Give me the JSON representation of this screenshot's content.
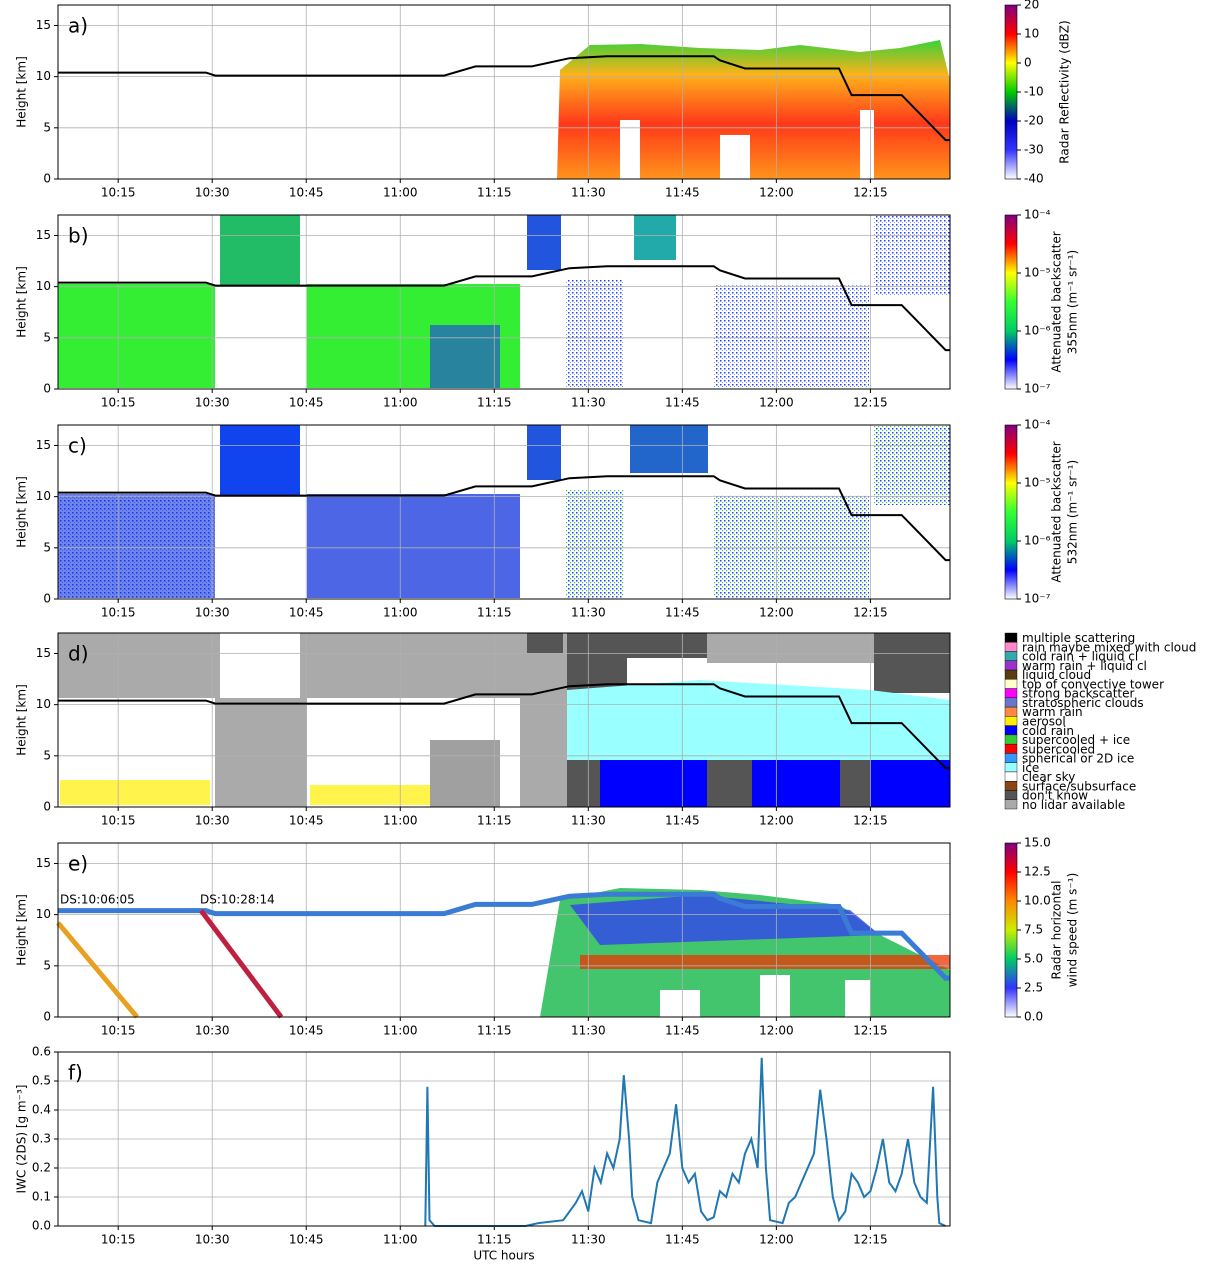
{
  "chart_data": [
    {
      "type": "line",
      "label": "a)",
      "ylabel": "Height [km]",
      "xlim": [
        "10:05:24",
        "12:27:42"
      ],
      "xticks": [
        "10:15",
        "10:30",
        "10:45",
        "11:00",
        "11:15",
        "11:30",
        "11:45",
        "12:00",
        "12:15"
      ],
      "ylim": [
        0,
        17
      ],
      "yticks": [
        0,
        5,
        10,
        15
      ],
      "grid": true,
      "series": [
        {
          "color": "#000000",
          "x": [
            "10:05:24",
            "10:29:00",
            "10:30:30",
            "11:07:00",
            "11:12:00",
            "11:21:00",
            "11:27:00",
            "11:33:00",
            "11:50:00",
            "11:51:00",
            "11:55:00",
            "12:10:00",
            "12:12:00",
            "12:20:00",
            "12:27:00",
            "12:27:42"
          ],
          "values": [
            10.4,
            10.4,
            10.1,
            10.1,
            11.0,
            11.0,
            11.8,
            12.0,
            12.0,
            11.6,
            10.8,
            10.8,
            8.2,
            8.2,
            3.8,
            3.8
          ]
        }
      ],
      "colorbar": {
        "label": [
          "Radar Reflectivity (dBZ)"
        ],
        "lim": [
          -40,
          20
        ],
        "ticks": [
          20,
          10,
          0,
          -10,
          -20,
          -30,
          -40
        ],
        "log": false,
        "colors": [
          "#ffffff",
          "#3333ff",
          "#0000c0",
          "#00cc00",
          "#ffff00",
          "#ff0000",
          "#800080"
        ]
      }
    },
    {
      "type": "line",
      "label": "b)",
      "ylabel": "Height [km]",
      "xlim": [
        "10:05:24",
        "12:27:42"
      ],
      "xticks": [
        "10:15",
        "10:30",
        "10:45",
        "11:00",
        "11:15",
        "11:30",
        "11:45",
        "12:00",
        "12:15"
      ],
      "ylim": [
        0,
        17
      ],
      "yticks": [
        0,
        5,
        10,
        15
      ],
      "grid": true,
      "series": [
        {
          "color": "#000000",
          "x": [
            "10:05:24",
            "10:29:00",
            "10:30:30",
            "11:07:00",
            "11:12:00",
            "11:21:00",
            "11:27:00",
            "11:33:00",
            "11:50:00",
            "11:51:00",
            "11:55:00",
            "12:10:00",
            "12:12:00",
            "12:20:00",
            "12:27:00",
            "12:27:42"
          ],
          "values": [
            10.4,
            10.4,
            10.1,
            10.1,
            11.0,
            11.0,
            11.8,
            12.0,
            12.0,
            11.6,
            10.8,
            10.8,
            8.2,
            8.2,
            3.8,
            3.8
          ]
        }
      ],
      "colorbar": {
        "label": [
          "Attenuated backscatter",
          "355nm (m⁻¹ sr⁻¹)"
        ],
        "lim": [
          1e-07,
          0.0001
        ],
        "ticks": [
          {
            "value": 0.0001,
            "label": "10⁻⁴"
          },
          {
            "value": 1e-05,
            "label": "10⁻⁵"
          },
          {
            "value": 1e-06,
            "label": "10⁻⁶"
          },
          {
            "value": 1e-07,
            "label": "10⁻⁷"
          }
        ],
        "log": true,
        "colors": [
          "#ffffff",
          "#0000ff",
          "#00cc66",
          "#33ff33",
          "#ffff00",
          "#ff0000",
          "#800080"
        ]
      }
    },
    {
      "type": "line",
      "label": "c)",
      "ylabel": "Height [km]",
      "xlim": [
        "10:05:24",
        "12:27:42"
      ],
      "xticks": [
        "10:15",
        "10:30",
        "10:45",
        "11:00",
        "11:15",
        "11:30",
        "11:45",
        "12:00",
        "12:15"
      ],
      "ylim": [
        0,
        17
      ],
      "yticks": [
        0,
        5,
        10,
        15
      ],
      "grid": true,
      "series": [
        {
          "color": "#000000",
          "x": [
            "10:05:24",
            "10:29:00",
            "10:30:30",
            "11:07:00",
            "11:12:00",
            "11:21:00",
            "11:27:00",
            "11:33:00",
            "11:50:00",
            "11:51:00",
            "11:55:00",
            "12:10:00",
            "12:12:00",
            "12:20:00",
            "12:27:00",
            "12:27:42"
          ],
          "values": [
            10.4,
            10.4,
            10.1,
            10.1,
            11.0,
            11.0,
            11.8,
            12.0,
            12.0,
            11.6,
            10.8,
            10.8,
            8.2,
            8.2,
            3.8,
            3.8
          ]
        }
      ],
      "colorbar": {
        "label": [
          "Attenuated backscatter",
          "532nm (m⁻¹ sr⁻¹)"
        ],
        "lim": [
          1e-07,
          0.0001
        ],
        "ticks": [
          {
            "value": 0.0001,
            "label": "10⁻⁴"
          },
          {
            "value": 1e-05,
            "label": "10⁻⁵"
          },
          {
            "value": 1e-06,
            "label": "10⁻⁶"
          },
          {
            "value": 1e-07,
            "label": "10⁻⁷"
          }
        ],
        "log": true,
        "colors": [
          "#ffffff",
          "#0000ff",
          "#00cc66",
          "#33ff33",
          "#ffff00",
          "#ff0000",
          "#800080"
        ]
      }
    },
    {
      "type": "line",
      "label": "d)",
      "ylabel": "Height [km]",
      "xlim": [
        "10:05:24",
        "12:27:42"
      ],
      "xticks": [
        "10:15",
        "10:30",
        "10:45",
        "11:00",
        "11:15",
        "11:30",
        "11:45",
        "12:00",
        "12:15"
      ],
      "ylim": [
        0,
        17
      ],
      "yticks": [
        0,
        5,
        10,
        15
      ],
      "grid": true,
      "series": [
        {
          "color": "#000000",
          "x": [
            "10:05:24",
            "10:29:00",
            "10:30:30",
            "11:07:00",
            "11:12:00",
            "11:21:00",
            "11:27:00",
            "11:33:00",
            "11:50:00",
            "11:51:00",
            "11:55:00",
            "12:10:00",
            "12:12:00",
            "12:20:00",
            "12:27:00",
            "12:27:42"
          ],
          "values": [
            10.4,
            10.4,
            10.1,
            10.1,
            11.0,
            11.0,
            11.8,
            12.0,
            12.0,
            11.6,
            10.8,
            10.8,
            8.2,
            8.2,
            3.8,
            3.8
          ]
        }
      ],
      "legend": {
        "categories": [
          "multiple scattering",
          "rain maybe mixed with cloud",
          "cold rain + liquid cl",
          "warm rain + liquid cl",
          "liquid cloud",
          "top of convective tower",
          "strong backscatter",
          "stratospheric clouds",
          "warm rain",
          "aerosol",
          "cold rain",
          "supercooled + ice",
          "supercooled",
          "spherical or 2D ice",
          "ice",
          "clear sky",
          "surface/subsurface",
          "don't know",
          "no lidar available"
        ],
        "colors": [
          "#000000",
          "#ff88cc",
          "#33aaaa",
          "#9933cc",
          "#5a3a10",
          "#ffffcc",
          "#ff00ff",
          "#6677cc",
          "#ff8844",
          "#ffee00",
          "#0000ff",
          "#33cc33",
          "#ff0000",
          "#3399ff",
          "#99ffff",
          "#ffffff",
          "#8b4513",
          "#555555",
          "#aaaaaa"
        ]
      }
    },
    {
      "type": "line",
      "label": "e)",
      "ylabel": "Height [km]",
      "xlim": [
        "10:05:24",
        "12:27:42"
      ],
      "xticks": [
        "10:15",
        "10:30",
        "10:45",
        "11:00",
        "11:15",
        "11:30",
        "11:45",
        "12:00",
        "12:15"
      ],
      "ylim": [
        0,
        17
      ],
      "yticks": [
        0,
        5,
        10,
        15
      ],
      "grid": true,
      "series": [
        {
          "color": "#3a7bd5",
          "x": [
            "10:05:24",
            "10:29:00",
            "10:30:30",
            "11:07:00",
            "11:12:00",
            "11:21:00",
            "11:27:00",
            "11:33:00",
            "11:50:00",
            "11:51:00",
            "11:55:00",
            "12:10:00",
            "12:12:00",
            "12:20:00",
            "12:27:00",
            "12:27:42"
          ],
          "values": [
            10.4,
            10.4,
            10.1,
            10.1,
            11.0,
            11.0,
            11.8,
            12.0,
            12.0,
            11.6,
            10.8,
            10.8,
            8.2,
            8.2,
            3.8,
            3.8
          ]
        },
        {
          "color": "#e8a020",
          "x": [
            "10:05:24",
            "10:18:00"
          ],
          "values": [
            9.2,
            0
          ]
        },
        {
          "color": "#c02040",
          "x": [
            "10:28:14",
            "10:41:00"
          ],
          "values": [
            10.4,
            0
          ]
        }
      ],
      "annotations": [
        "DS:10:06:05",
        "DS:10:28:14"
      ],
      "colorbar": {
        "label": [
          "Radar horizontal",
          "wind speed (m s⁻¹)"
        ],
        "lim": [
          0,
          15
        ],
        "ticks": [
          {
            "value": 15,
            "label": "15.0"
          },
          12.5,
          {
            "value": 10,
            "label": "10.0"
          },
          7.5,
          {
            "value": 5,
            "label": "5.0"
          },
          2.5,
          {
            "value": 0,
            "label": "0.0"
          }
        ],
        "log": false,
        "colors": [
          "#ffffff",
          "#3333ff",
          "#00cc66",
          "#ccee00",
          "#ff8800",
          "#ff0000",
          "#800080"
        ]
      }
    },
    {
      "type": "line",
      "label": "f)",
      "ylabel": "IWC (2DS) [g m⁻³]",
      "xlabel": "UTC hours",
      "xlim": [
        "10:05:24",
        "12:27:42"
      ],
      "xticks": [
        "10:15",
        "10:30",
        "10:45",
        "11:00",
        "11:15",
        "11:30",
        "11:45",
        "12:00",
        "12:15"
      ],
      "ylim": [
        0,
        0.6
      ],
      "yticks": [
        {
          "value": 0,
          "label": "0.0"
        },
        0.1,
        0.2,
        0.3,
        0.4,
        0.5,
        0.6
      ],
      "grid": true,
      "series": [
        {
          "color": "#1f77b4",
          "x": [
            "11:04:00",
            "11:04:20",
            "11:04:40",
            "11:05:30",
            "11:20:00",
            "11:22:00",
            "11:26:00",
            "11:28:00",
            "11:29:00",
            "11:30:00",
            "11:31:00",
            "11:32:00",
            "11:33:00",
            "11:34:00",
            "11:35:00",
            "11:35:40",
            "11:36:30",
            "11:37:00",
            "11:38:00",
            "11:40:00",
            "11:41:00",
            "11:42:00",
            "11:43:00",
            "11:44:00",
            "11:45:00",
            "11:46:00",
            "11:47:00",
            "11:48:00",
            "11:49:00",
            "11:50:00",
            "11:51:00",
            "11:52:00",
            "11:53:00",
            "11:54:00",
            "11:55:00",
            "11:56:00",
            "11:57:00",
            "11:57:40",
            "11:58:20",
            "11:59:00",
            "12:01:00",
            "12:02:00",
            "12:03:00",
            "12:04:00",
            "12:05:00",
            "12:06:00",
            "12:07:00",
            "12:08:00",
            "12:09:00",
            "12:10:00",
            "12:11:00",
            "12:12:00",
            "12:13:00",
            "12:14:00",
            "12:15:00",
            "12:16:00",
            "12:17:00",
            "12:18:00",
            "12:19:00",
            "12:20:00",
            "12:21:00",
            "12:22:00",
            "12:23:00",
            "12:24:00",
            "12:25:00",
            "12:25:40",
            "12:26:00",
            "12:27:00"
          ],
          "values": [
            0,
            0.48,
            0.02,
            0,
            0,
            0.01,
            0.02,
            0.08,
            0.12,
            0.05,
            0.2,
            0.15,
            0.25,
            0.2,
            0.3,
            0.52,
            0.3,
            0.1,
            0.02,
            0.01,
            0.15,
            0.2,
            0.25,
            0.42,
            0.2,
            0.15,
            0.18,
            0.05,
            0.02,
            0.03,
            0.12,
            0.1,
            0.18,
            0.15,
            0.25,
            0.3,
            0.2,
            0.58,
            0.2,
            0.02,
            0.01,
            0.08,
            0.1,
            0.15,
            0.2,
            0.25,
            0.47,
            0.3,
            0.1,
            0.02,
            0.05,
            0.18,
            0.15,
            0.1,
            0.12,
            0.2,
            0.3,
            0.15,
            0.12,
            0.18,
            0.3,
            0.15,
            0.1,
            0.08,
            0.48,
            0.1,
            0.01,
            0
          ]
        }
      ]
    }
  ]
}
